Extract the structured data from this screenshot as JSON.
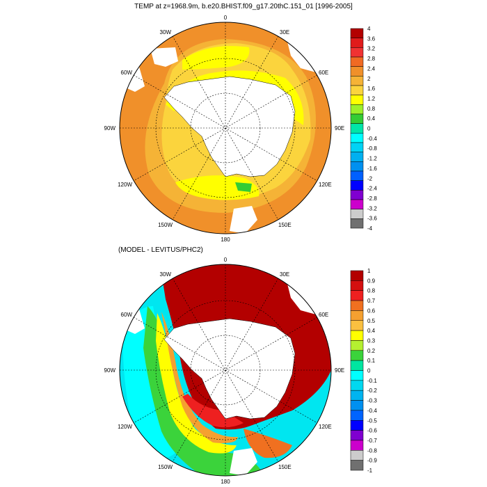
{
  "top_panel": {
    "title": "TEMP at z=1968.9m, b.e20.BHIST.f09_g17.20thC.151_01 [1996-2005]",
    "lon_labels": [
      "0",
      "30E",
      "60E",
      "90E",
      "120E",
      "150E",
      "180",
      "150W",
      "120W",
      "90W",
      "60W",
      "30W"
    ],
    "colorbar": {
      "labels": [
        "4",
        "3.6",
        "3.2",
        "2.8",
        "2.4",
        "2",
        "1.6",
        "1.2",
        "0.8",
        "0.4",
        "0",
        "-0.4",
        "-0.8",
        "-1.2",
        "-1.6",
        "-2",
        "-2.4",
        "-2.8",
        "-3.2",
        "-3.6",
        "-4"
      ],
      "colors": [
        "#b30000",
        "#e01b1b",
        "#f03232",
        "#f06a23",
        "#f0902a",
        "#f5b336",
        "#fbd43d",
        "#ffff00",
        "#9df02a",
        "#34cc34",
        "#00e6a8",
        "#00ffff",
        "#00d3f5",
        "#00b0f0",
        "#0090f0",
        "#0060ff",
        "#0000ff",
        "#8000d0",
        "#cc00cc",
        "#cccccc",
        "#707070"
      ]
    }
  },
  "bottom_panel": {
    "title": "(MODEL - LEVITUS/PHC2)",
    "lon_labels": [
      "0",
      "30E",
      "60E",
      "90E",
      "120E",
      "150E",
      "180",
      "150W",
      "120W",
      "90W",
      "60W",
      "30W"
    ],
    "colorbar": {
      "labels": [
        "1",
        "0.9",
        "0.8",
        "0.7",
        "0.6",
        "0.5",
        "0.4",
        "0.3",
        "0.2",
        "0.1",
        "0",
        "-0.1",
        "-0.2",
        "-0.3",
        "-0.4",
        "-0.5",
        "-0.6",
        "-0.7",
        "-0.8",
        "-0.9",
        "-1"
      ],
      "colors": [
        "#b30000",
        "#d40f0f",
        "#ee2020",
        "#f07020",
        "#f5a030",
        "#fac040",
        "#ffff00",
        "#b5f030",
        "#3bd33b",
        "#00e6a0",
        "#00ffff",
        "#00d8f0",
        "#00b4f0",
        "#0090f0",
        "#0064ff",
        "#0000ff",
        "#8000d0",
        "#cc00cc",
        "#cccccc",
        "#707070"
      ]
    }
  }
}
